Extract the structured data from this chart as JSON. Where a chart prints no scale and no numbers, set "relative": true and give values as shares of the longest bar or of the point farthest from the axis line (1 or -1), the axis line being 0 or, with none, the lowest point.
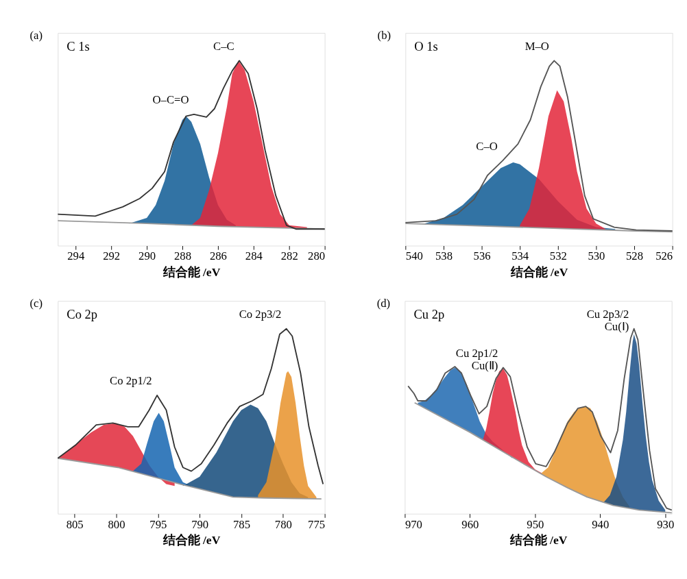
{
  "chart_data": [
    {
      "type": "line",
      "title": "C 1s",
      "xlabel": "结合能 /eV",
      "xlim": [
        295,
        280
      ],
      "xticks": [
        294,
        292,
        290,
        288,
        286,
        284,
        282,
        280
      ],
      "relative": true,
      "grid": false,
      "annotations": [
        "(a)",
        {
          "text": "O–C=O",
          "x": 287.35,
          "y": 0.71
        },
        {
          "text": "C–C",
          "x": 284.8,
          "y": 1.0
        }
      ],
      "series": [
        {
          "type": "area",
          "color": "#0e5a94",
          "x": [
            291,
            290,
            289.5,
            289,
            288.5,
            288,
            287.8,
            287.5,
            287,
            286.5,
            286,
            285.5,
            285
          ],
          "values": [
            0.12,
            0.15,
            0.22,
            0.35,
            0.55,
            0.68,
            0.7,
            0.67,
            0.55,
            0.37,
            0.22,
            0.14,
            0.11
          ]
        },
        {
          "type": "area",
          "color": "#e3263a",
          "x": [
            287.5,
            287,
            286.5,
            286,
            285.5,
            285.2,
            284.85,
            284.5,
            284,
            283.5,
            283,
            282.5,
            282,
            281
          ],
          "values": [
            0.11,
            0.15,
            0.3,
            0.5,
            0.75,
            0.93,
            1.0,
            0.95,
            0.78,
            0.55,
            0.32,
            0.17,
            0.11,
            0.1
          ]
        },
        {
          "color": "#9a9a9a",
          "x": [
            295,
            290,
            286,
            282,
            280
          ],
          "values": [
            0.135,
            0.12,
            0.105,
            0.095,
            0.09
          ]
        },
        {
          "color": "#333333",
          "x": [
            295,
            292.9,
            291.35,
            290.4,
            289.7,
            289.0,
            288.5,
            287.8,
            287.35,
            286.65,
            286.2,
            285.7,
            285.2,
            284.8,
            284.3,
            283.8,
            283.35,
            282.75,
            282.15,
            281.6,
            280
          ],
          "values": [
            0.17,
            0.16,
            0.21,
            0.255,
            0.31,
            0.4,
            0.56,
            0.7,
            0.71,
            0.695,
            0.74,
            0.85,
            0.945,
            1.0,
            0.93,
            0.74,
            0.515,
            0.27,
            0.11,
            0.09,
            0.09
          ]
        }
      ]
    },
    {
      "type": "line",
      "title": "O 1s",
      "xlabel": "结合能 /eV",
      "xlim": [
        540,
        526
      ],
      "xticks": [
        540,
        538,
        536,
        534,
        532,
        530,
        528,
        526
      ],
      "relative": true,
      "grid": false,
      "annotations": [
        "(b)",
        {
          "text": "C–O",
          "x": 534.9,
          "y": 0.46
        },
        {
          "text": "M–O",
          "x": 532.2,
          "y": 1.0
        }
      ],
      "series": [
        {
          "type": "area",
          "color": "#0e5a94",
          "x": [
            539,
            538,
            537,
            536,
            535,
            534.35,
            534,
            533,
            532,
            531,
            530,
            529
          ],
          "values": [
            0.12,
            0.15,
            0.22,
            0.32,
            0.42,
            0.45,
            0.44,
            0.36,
            0.24,
            0.14,
            0.1,
            0.09
          ]
        },
        {
          "type": "area",
          "color": "#e3263a",
          "x": [
            534,
            533.5,
            533,
            532.5,
            532.05,
            531.7,
            531.3,
            531,
            530.5,
            530,
            529.5
          ],
          "values": [
            0.11,
            0.2,
            0.42,
            0.7,
            0.84,
            0.78,
            0.58,
            0.4,
            0.2,
            0.12,
            0.09
          ]
        },
        {
          "color": "#9a9a9a",
          "x": [
            540,
            528,
            526
          ],
          "values": [
            0.12,
            0.08,
            0.075
          ]
        },
        {
          "color": "#555555",
          "x": [
            540,
            538.4,
            537.3,
            536.4,
            535.7,
            534.9,
            534.1,
            533.45,
            532.9,
            532.45,
            532.2,
            531.9,
            531.5,
            531.05,
            530.6,
            530.15,
            529.05,
            527.9,
            526
          ],
          "values": [
            0.125,
            0.135,
            0.17,
            0.25,
            0.38,
            0.46,
            0.55,
            0.68,
            0.86,
            0.97,
            1.0,
            0.97,
            0.805,
            0.54,
            0.27,
            0.145,
            0.1,
            0.085,
            0.08
          ]
        }
      ]
    },
    {
      "type": "line",
      "title": "Co 2p",
      "xlabel": "结合能 /eV",
      "xlim": [
        807,
        775
      ],
      "xticks": [
        805,
        800,
        795,
        790,
        785,
        780,
        775
      ],
      "relative": true,
      "grid": false,
      "annotations": [
        "(c)",
        {
          "text": "Co 2p1/2",
          "x": 795.1,
          "y": 0.64
        },
        {
          "text": "Co 2p3/2",
          "x": 779.6,
          "y": 1.0
        }
      ],
      "series": [
        {
          "type": "area",
          "color": "#e0283a",
          "x": [
            807,
            805,
            803,
            801.5,
            800,
            799,
            798,
            797,
            796,
            795,
            794,
            793
          ],
          "values": [
            0.3,
            0.37,
            0.44,
            0.48,
            0.49,
            0.47,
            0.42,
            0.34,
            0.26,
            0.2,
            0.16,
            0.15
          ]
        },
        {
          "type": "area",
          "color": "#1565b0",
          "x": [
            798,
            797,
            796.3,
            795.5,
            794.9,
            794.3,
            793.5,
            793,
            792,
            791
          ],
          "values": [
            0.23,
            0.27,
            0.38,
            0.5,
            0.545,
            0.5,
            0.35,
            0.25,
            0.17,
            0.15
          ]
        },
        {
          "type": "area",
          "color": "#134a7a",
          "x": [
            792,
            790,
            788,
            786,
            785,
            783.9,
            783,
            782,
            781,
            780,
            779,
            778,
            777
          ],
          "values": [
            0.15,
            0.2,
            0.33,
            0.5,
            0.56,
            0.59,
            0.57,
            0.5,
            0.38,
            0.27,
            0.17,
            0.11,
            0.09
          ]
        },
        {
          "type": "area",
          "color": "#e8922a",
          "x": [
            783,
            782,
            781,
            780.3,
            779.6,
            779.4,
            779,
            778.5,
            778,
            777.5,
            777,
            776
          ],
          "values": [
            0.1,
            0.17,
            0.38,
            0.6,
            0.76,
            0.77,
            0.74,
            0.6,
            0.42,
            0.26,
            0.15,
            0.09
          ]
        },
        {
          "color": "#9a9a9a",
          "x": [
            807,
            799.8,
            792.3,
            786,
            782.2,
            775.4
          ],
          "values": [
            0.3,
            0.25,
            0.16,
            0.09,
            0.085,
            0.08
          ]
        },
        {
          "color": "#333333",
          "x": [
            807,
            804.9,
            802.4,
            800.4,
            798.6,
            797.3,
            796.05,
            795.1,
            794,
            793,
            792,
            791,
            789.8,
            788.3,
            786.7,
            785.2,
            783.7,
            782.4,
            781.4,
            780.4,
            779.6,
            778.9,
            777.9,
            776.9,
            775.8,
            775.2
          ],
          "values": [
            0.3,
            0.37,
            0.48,
            0.49,
            0.47,
            0.47,
            0.56,
            0.64,
            0.56,
            0.36,
            0.25,
            0.23,
            0.27,
            0.37,
            0.49,
            0.58,
            0.61,
            0.645,
            0.785,
            0.97,
            1.0,
            0.96,
            0.76,
            0.47,
            0.26,
            0.16
          ]
        }
      ]
    },
    {
      "type": "line",
      "title": "Cu 2p",
      "xlabel": "结合能 /eV",
      "xlim": [
        970,
        929
      ],
      "xticks": [
        970,
        960,
        950,
        940,
        930
      ],
      "relative": true,
      "grid": false,
      "annotations": [
        "(d)",
        {
          "text": "Cu 2p1/2\nCu(Ⅱ)",
          "x": 954.9,
          "y": 0.79
        },
        {
          "text": "Cu 2p3/2\nCu(Ⅰ)",
          "x": 934.8,
          "y": 1.0
        }
      ],
      "series": [
        {
          "type": "area",
          "color": "#1f68b0",
          "x": [
            968,
            967,
            966,
            965,
            964,
            963,
            962.3,
            961.5,
            960.5,
            959.5,
            958.5,
            957.5,
            956.5,
            955.5,
            954.5,
            953.5
          ],
          "values": [
            0.6,
            0.61,
            0.64,
            0.68,
            0.73,
            0.775,
            0.79,
            0.77,
            0.7,
            0.6,
            0.5,
            0.43,
            0.39,
            0.36,
            0.33,
            0.3
          ]
        },
        {
          "type": "area",
          "color": "#e3263a",
          "x": [
            958,
            957.5,
            957,
            956.5,
            956,
            955.5,
            954.9,
            954.3,
            953.8,
            953,
            952.5,
            952,
            951,
            950,
            949
          ],
          "values": [
            0.4,
            0.46,
            0.55,
            0.65,
            0.72,
            0.77,
            0.785,
            0.75,
            0.68,
            0.55,
            0.45,
            0.37,
            0.28,
            0.24,
            0.22
          ]
        },
        {
          "type": "area",
          "color": "#e8962e",
          "x": [
            949,
            948,
            947,
            946,
            945,
            944,
            943,
            942.2,
            941.5,
            940.5,
            939.5,
            938.5,
            937.5,
            936.5,
            935.5
          ],
          "values": [
            0.22,
            0.25,
            0.33,
            0.42,
            0.5,
            0.55,
            0.575,
            0.58,
            0.57,
            0.5,
            0.4,
            0.28,
            0.17,
            0.09,
            0.04
          ]
        },
        {
          "type": "area",
          "color": "#1a4f86",
          "x": [
            939.5,
            938.5,
            937.5,
            936.5,
            936,
            935.5,
            935,
            934.8,
            934.4,
            934,
            933.5,
            933,
            932.5,
            932,
            931,
            930
          ],
          "values": [
            0.06,
            0.1,
            0.2,
            0.4,
            0.55,
            0.75,
            0.93,
            0.97,
            0.92,
            0.8,
            0.6,
            0.42,
            0.28,
            0.18,
            0.07,
            0.02
          ]
        },
        {
          "color": "#9a9a9a",
          "x": [
            968.5,
            960,
            952,
            948.3,
            945,
            942,
            938,
            934,
            929
          ],
          "values": [
            0.6,
            0.44,
            0.275,
            0.2,
            0.14,
            0.09,
            0.045,
            0.02,
            0.005
          ]
        },
        {
          "color": "#555555",
          "x": [
            969.5,
            968.6,
            968.0,
            966.7,
            965.1,
            963.8,
            962.3,
            961.3,
            959.9,
            958.6,
            957.4,
            956.0,
            954.9,
            953.8,
            952.5,
            951.2,
            949.9,
            948.3,
            947.0,
            945.0,
            943.4,
            942.2,
            941.2,
            939.9,
            938.4,
            937.3,
            936.3,
            935.3,
            934.8,
            934.2,
            933.4,
            932.4,
            931.5,
            929.8,
            929
          ],
          "values": [
            0.69,
            0.65,
            0.61,
            0.61,
            0.67,
            0.76,
            0.795,
            0.76,
            0.64,
            0.54,
            0.58,
            0.73,
            0.79,
            0.74,
            0.54,
            0.36,
            0.27,
            0.255,
            0.335,
            0.49,
            0.57,
            0.58,
            0.55,
            0.42,
            0.33,
            0.45,
            0.73,
            0.95,
            1.0,
            0.94,
            0.67,
            0.34,
            0.135,
            0.03,
            0.02
          ]
        }
      ]
    }
  ]
}
